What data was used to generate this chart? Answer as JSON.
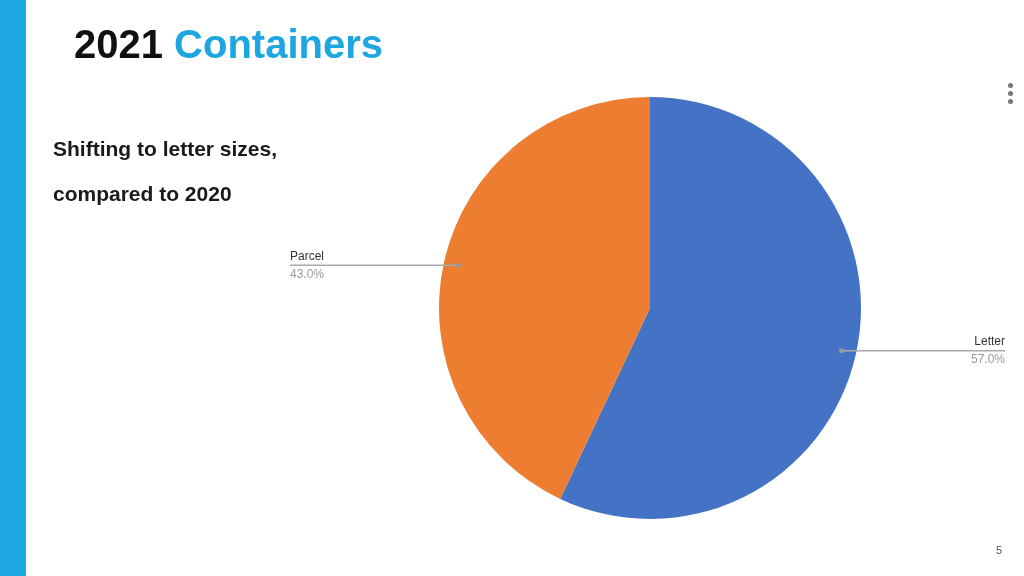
{
  "chart_data": {
    "type": "pie",
    "title": "2021 Containers",
    "subtitle": "Shifting to letter sizes, compared to 2020",
    "categories": [
      "Letter",
      "Parcel"
    ],
    "values": [
      57.0,
      43.0
    ],
    "colors": [
      "#4472c4",
      "#ed7d31"
    ],
    "value_labels": [
      "57.0%",
      "43.0%"
    ],
    "legend": false,
    "annotations": [
      "5"
    ]
  }
}
